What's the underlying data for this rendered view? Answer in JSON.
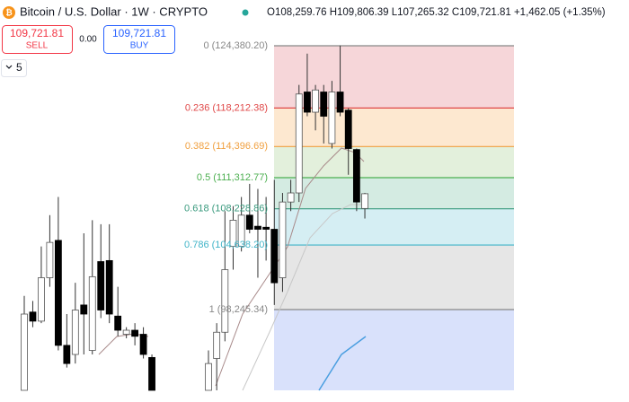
{
  "header": {
    "title": "Bitcoin / U.S. Dollar · 1W · CRYPTO",
    "ohlc": "O108,259.76 H109,806.39 L107,265.32 C109,721.81 +1,462.05 (+1.35%)"
  },
  "trade": {
    "sell_price": "109,721.81",
    "sell_label": "SELL",
    "spread": "0.00",
    "buy_price": "109,721.81",
    "buy_label": "BUY"
  },
  "collapse": {
    "count": "5"
  },
  "fib_levels": [
    {
      "price": 124380.2,
      "label": "0 (124,380.20)",
      "color": "#888888",
      "zone_color": "#f6d6d9"
    },
    {
      "price": 118212.38,
      "label": "0.236 (118,212.38)",
      "color": "#e04848",
      "zone_color": "#fde8d0"
    },
    {
      "price": 114396.69,
      "label": "0.382 (114,396.69)",
      "color": "#f0a040",
      "zone_color": "#e3f0dc"
    },
    {
      "price": 111312.77,
      "label": "0.5 (111,312.77)",
      "color": "#4caf50",
      "zone_color": "#d4ebe2"
    },
    {
      "price": 108228.86,
      "label": "0.618 (108,228.86)",
      "color": "#3a9a7e",
      "zone_color": "#d5eef3"
    },
    {
      "price": 104638.2,
      "label": "0.786 (104,638.20)",
      "color": "#40b4c8",
      "zone_color": "#e6e6e6"
    },
    {
      "price": 98245.34,
      "label": "1 (98,245.34)",
      "color": "#888888",
      "zone_color": "#d9e1fb"
    }
  ],
  "candles_left": [
    [
      90200,
      99600,
      90200,
      97800
    ],
    [
      98000,
      99100,
      96500,
      97100
    ],
    [
      97100,
      104500,
      96900,
      101400
    ],
    [
      101400,
      107600,
      100500,
      104900
    ],
    [
      105100,
      109400,
      94200,
      94700
    ],
    [
      94700,
      97800,
      92500,
      92900
    ],
    [
      93800,
      100900,
      92900,
      98200
    ],
    [
      98700,
      105800,
      93800,
      97800
    ],
    [
      94200,
      107100,
      93800,
      101500
    ],
    [
      103000,
      106700,
      97400,
      98200
    ],
    [
      103100,
      106700,
      96900,
      97800
    ],
    [
      97600,
      100500,
      95600,
      96200
    ],
    [
      95800,
      96500,
      95400,
      96200
    ],
    [
      96200,
      96900,
      94700,
      95600
    ],
    [
      95800,
      96500,
      93400,
      93800
    ],
    [
      93500,
      93800,
      90200,
      90200
    ]
  ],
  "candles_right": [
    [
      90200,
      94200,
      90200,
      92900
    ],
    [
      93400,
      96900,
      90200,
      96000
    ],
    [
      96000,
      108000,
      95100,
      102200
    ],
    [
      104500,
      108500,
      102200,
      107100
    ],
    [
      104500,
      109400,
      104000,
      107600
    ],
    [
      107600,
      110700,
      105800,
      106200
    ],
    [
      106500,
      110200,
      101400,
      106200
    ],
    [
      106400,
      109400,
      103100,
      106200
    ],
    [
      106200,
      111100,
      98700,
      100900
    ],
    [
      101400,
      109800,
      100000,
      108900
    ],
    [
      108900,
      111100,
      108000,
      109800
    ],
    [
      109800,
      120500,
      108900,
      119600
    ],
    [
      119800,
      123600,
      117400,
      117800
    ],
    [
      117800,
      120500,
      116000,
      120000
    ],
    [
      119800,
      120500,
      114700,
      117400
    ],
    [
      114700,
      120900,
      114200,
      119800
    ],
    [
      119800,
      124400,
      117400,
      117800
    ],
    [
      118000,
      118200,
      111600,
      114200
    ],
    [
      114100,
      114200,
      108000,
      108900
    ],
    [
      108259.76,
      109806.39,
      107265.32,
      109721.81
    ]
  ]
}
